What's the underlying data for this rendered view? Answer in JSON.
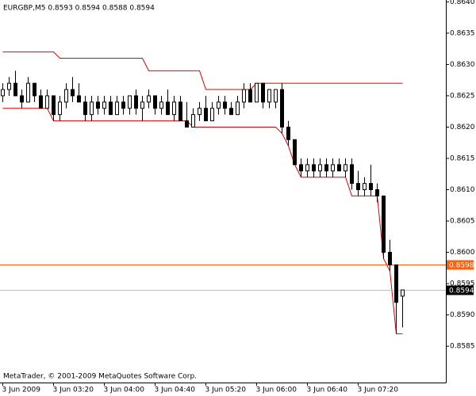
{
  "chart_data": {
    "type": "candlestick",
    "header": "EURGBP,M5  0.8593 0.8594 0.8588 0.8594",
    "footer": "MetaTrader, © 2001-2009 MetaQuotes Software Corp.",
    "categories": [
      "3 Jun 2009",
      null,
      null,
      null,
      null,
      null,
      null,
      null,
      "3 Jun 03:20",
      null,
      null,
      null,
      null,
      null,
      null,
      null,
      "3 Jun 04:00",
      null,
      null,
      null,
      null,
      null,
      null,
      null,
      "3 Jun 04:40",
      null,
      null,
      null,
      null,
      null,
      null,
      null,
      "3 Jun 05:20",
      null,
      null,
      null,
      null,
      null,
      null,
      null,
      "3 Jun 06:00",
      null,
      null,
      null,
      null,
      null,
      null,
      null,
      "3 Jun 06:40",
      null,
      null,
      null,
      null,
      null,
      null,
      null,
      "3 Jun 07:20",
      null,
      null,
      null,
      null,
      null,
      null,
      null
    ],
    "open": [
      0.8625,
      0.8626,
      0.8627,
      0.8625,
      0.8624,
      0.8627,
      0.8625,
      0.8623,
      0.8625,
      0.8622,
      0.8624,
      0.8626,
      0.8625,
      0.8624,
      0.8622,
      0.8624,
      0.8623,
      0.8624,
      0.8622,
      0.8624,
      0.8623,
      0.8625,
      0.8623,
      0.8624,
      0.8625,
      0.8623,
      0.8624,
      0.8622,
      0.8624,
      0.8621,
      0.862,
      0.8622,
      0.8623,
      0.8621,
      0.8623,
      0.8624,
      0.8623,
      0.8622,
      0.8624,
      0.8626,
      0.8624,
      0.8627,
      0.8624,
      0.8624,
      0.8626,
      0.862,
      0.8618,
      0.8614,
      0.8613,
      0.8614,
      0.8613,
      0.8614,
      0.8613,
      0.8614,
      0.8613,
      0.8614,
      0.8611,
      0.861,
      0.8611,
      0.861,
      0.8609,
      0.86,
      0.8598,
      0.8593
    ],
    "high": [
      0.8627,
      0.8628,
      0.8629,
      0.8626,
      0.8628,
      0.8627,
      0.8626,
      0.8626,
      0.8625,
      0.8625,
      0.8627,
      0.8628,
      0.8627,
      0.8625,
      0.8625,
      0.8625,
      0.8625,
      0.8625,
      0.8625,
      0.8625,
      0.8625,
      0.8626,
      0.8625,
      0.8626,
      0.8625,
      0.8625,
      0.8626,
      0.8625,
      0.8625,
      0.8624,
      0.8623,
      0.8624,
      0.8625,
      0.8624,
      0.8625,
      0.8625,
      0.8624,
      0.8625,
      0.8627,
      0.8627,
      0.8627,
      0.8627,
      0.8626,
      0.8626,
      0.8627,
      0.8621,
      0.8618,
      0.8615,
      0.8615,
      0.8615,
      0.8615,
      0.8615,
      0.8615,
      0.8615,
      0.8615,
      0.8615,
      0.8613,
      0.8612,
      0.8614,
      0.8611,
      0.8609,
      0.8602,
      0.8598,
      0.8594
    ],
    "low": [
      0.8624,
      0.8625,
      0.8625,
      0.8623,
      0.8624,
      0.8624,
      0.8623,
      0.8623,
      0.8621,
      0.8621,
      0.8623,
      0.8624,
      0.8624,
      0.8621,
      0.8621,
      0.8622,
      0.8622,
      0.8622,
      0.8622,
      0.8622,
      0.8622,
      0.8622,
      0.8621,
      0.8623,
      0.8622,
      0.8622,
      0.8622,
      0.8621,
      0.8621,
      0.862,
      0.862,
      0.8621,
      0.8621,
      0.8621,
      0.8622,
      0.8622,
      0.8622,
      0.8622,
      0.8623,
      0.8624,
      0.8624,
      0.8623,
      0.8623,
      0.8623,
      0.8619,
      0.8617,
      0.8614,
      0.8612,
      0.8612,
      0.8612,
      0.8612,
      0.8612,
      0.8612,
      0.8613,
      0.8612,
      0.861,
      0.8609,
      0.8609,
      0.8609,
      0.8608,
      0.8599,
      0.8597,
      0.8587,
      0.8588
    ],
    "close": [
      0.8626,
      0.8627,
      0.8625,
      0.8624,
      0.8627,
      0.8625,
      0.8623,
      0.8625,
      0.8622,
      0.8624,
      0.8626,
      0.8625,
      0.8624,
      0.8622,
      0.8624,
      0.8623,
      0.8624,
      0.8622,
      0.8624,
      0.8623,
      0.8625,
      0.8623,
      0.8624,
      0.8625,
      0.8623,
      0.8624,
      0.8622,
      0.8624,
      0.8621,
      0.862,
      0.8622,
      0.8623,
      0.8621,
      0.8623,
      0.8624,
      0.8623,
      0.8622,
      0.8624,
      0.8626,
      0.8624,
      0.8627,
      0.8624,
      0.8626,
      0.8626,
      0.862,
      0.8618,
      0.8614,
      0.8613,
      0.8614,
      0.8613,
      0.8614,
      0.8613,
      0.8614,
      0.8613,
      0.8614,
      0.8611,
      0.861,
      0.8611,
      0.861,
      0.8609,
      0.86,
      0.8598,
      0.8592,
      0.8594
    ],
    "channel_color": "#e00000",
    "channel_upper": [
      0.8632,
      0.8632,
      0.8632,
      0.8632,
      0.8632,
      0.8632,
      0.8632,
      0.8632,
      0.8632,
      0.8631,
      0.8631,
      0.8631,
      0.8631,
      0.8631,
      0.8631,
      0.8631,
      0.8631,
      0.8631,
      0.8631,
      0.8631,
      0.8631,
      0.8631,
      0.8631,
      0.8629,
      0.8629,
      0.8629,
      0.8629,
      0.8629,
      0.8629,
      0.8629,
      0.8629,
      0.8629,
      0.8626,
      0.8626,
      0.8626,
      0.8626,
      0.8626,
      0.8626,
      0.8626,
      0.8626,
      0.8627,
      0.8627,
      0.8627,
      0.8627,
      0.8627,
      0.8627,
      0.8627,
      0.8627,
      0.8627,
      0.8627,
      0.8627,
      0.8627,
      0.8627,
      0.8627,
      0.8627,
      0.8627,
      0.8627,
      0.8627,
      0.8627,
      0.8627,
      0.8627,
      0.8627,
      0.8627,
      0.8627
    ],
    "channel_lower": [
      0.8623,
      0.8623,
      0.8623,
      0.8623,
      0.8623,
      0.8623,
      0.8623,
      0.8623,
      0.8621,
      0.8621,
      0.8621,
      0.8621,
      0.8621,
      0.8621,
      0.8621,
      0.8621,
      0.8621,
      0.8621,
      0.8621,
      0.8621,
      0.8621,
      0.8621,
      0.8621,
      0.8621,
      0.8621,
      0.8621,
      0.8621,
      0.8621,
      0.8621,
      0.8621,
      0.862,
      0.862,
      0.862,
      0.862,
      0.862,
      0.862,
      0.862,
      0.862,
      0.862,
      0.862,
      0.862,
      0.862,
      0.862,
      0.862,
      0.8619,
      0.8617,
      0.8614,
      0.8612,
      0.8612,
      0.8612,
      0.8612,
      0.8612,
      0.8612,
      0.8612,
      0.8612,
      0.8609,
      0.8609,
      0.8609,
      0.8609,
      0.8609,
      0.8599,
      0.8597,
      0.8587,
      0.8587
    ],
    "price_lines": [
      {
        "value": 0.8598,
        "color": "#ff6010"
      },
      {
        "value": 0.8594,
        "color": "#c0c0c0"
      }
    ],
    "ylim": [
      0.85792,
      0.86403
    ],
    "yticks": [
      {
        "value": 0.8585,
        "label": "0.8585"
      },
      {
        "value": 0.859,
        "label": "0.8590"
      },
      {
        "value": 0.8595,
        "label": "0.8595"
      },
      {
        "value": 0.86,
        "label": "0.8600"
      },
      {
        "value": 0.8605,
        "label": "0.8605"
      },
      {
        "value": 0.861,
        "label": "0.8610"
      },
      {
        "value": 0.8615,
        "label": "0.8615"
      },
      {
        "value": 0.862,
        "label": "0.8620"
      },
      {
        "value": 0.8625,
        "label": "0.8625"
      },
      {
        "value": 0.863,
        "label": "0.8630"
      },
      {
        "value": 0.8635,
        "label": "0.8635"
      },
      {
        "value": 0.864,
        "label": "0.8640"
      }
    ],
    "grid": false
  }
}
